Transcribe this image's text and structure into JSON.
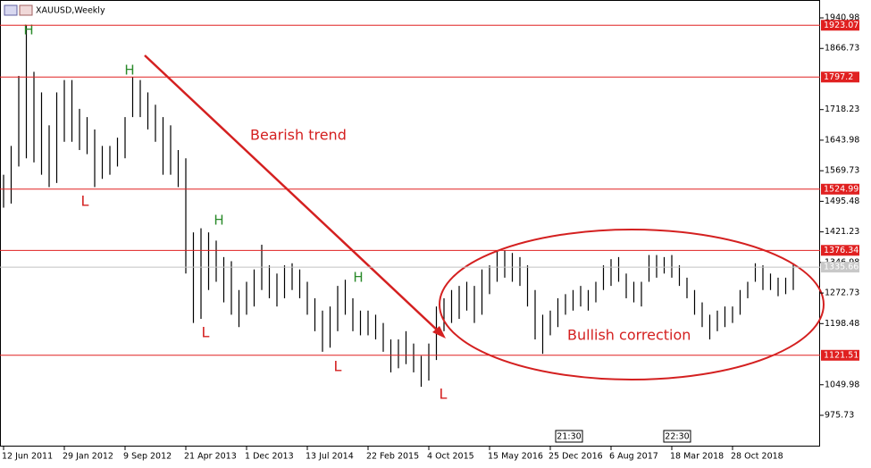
{
  "chart_data": {
    "type": "range-bar",
    "title": "XAUUSD,Weekly",
    "color": "#000000",
    "level_color": "#e02020",
    "ylim": [
      899.8,
      1984.4
    ],
    "yticks": [
      975.73,
      1049.98,
      1198.48,
      1272.73,
      1346.98,
      1421.23,
      1495.48,
      1569.73,
      1643.98,
      1718.23,
      1866.73,
      1940.98
    ],
    "levels": [
      1923.07,
      1797.2,
      1524.99,
      1376.34,
      1121.51
    ],
    "current_price": 1335.66,
    "annotations": {
      "high_marks": [
        "H",
        "H",
        "H",
        "H"
      ],
      "low_marks": [
        "L",
        "L",
        "L",
        "L"
      ],
      "trend": "Bearish trend",
      "correction": "Bullish correction"
    },
    "time_markers": [
      "21:30",
      "22:30"
    ],
    "categories": [
      "12 Jun 2011",
      null,
      null,
      null,
      null,
      null,
      null,
      null,
      "29 Jan 2012",
      null,
      null,
      null,
      null,
      null,
      null,
      null,
      "9 Sep 2012",
      null,
      null,
      null,
      null,
      null,
      null,
      null,
      "21 Apr 2013",
      null,
      null,
      null,
      null,
      null,
      null,
      null,
      "1 Dec 2013",
      null,
      null,
      null,
      null,
      null,
      null,
      null,
      "13 Jul 2014",
      null,
      null,
      null,
      null,
      null,
      null,
      null,
      "22 Feb 2015",
      null,
      null,
      null,
      null,
      null,
      null,
      null,
      "4 Oct 2015",
      null,
      null,
      null,
      null,
      null,
      null,
      null,
      "15 May 2016",
      null,
      null,
      null,
      null,
      null,
      null,
      null,
      "25 Dec 2016",
      null,
      null,
      null,
      null,
      null,
      null,
      null,
      "6 Aug 2017",
      null,
      null,
      null,
      null,
      null,
      null,
      null,
      "18 Mar 2018",
      null,
      null,
      null,
      null,
      null,
      null,
      null,
      "28 Oct 2018",
      null,
      null,
      null,
      null,
      null,
      null,
      null,
      null
    ],
    "high": [
      1560,
      1630,
      1800,
      1923,
      1810,
      1760,
      1680,
      1760,
      1790,
      1790,
      1720,
      1700,
      1670,
      1630,
      1630,
      1650,
      1700,
      1797,
      1790,
      1760,
      1730,
      1700,
      1680,
      1620,
      1600,
      1420,
      1430,
      1420,
      1400,
      1360,
      1350,
      1280,
      1300,
      1330,
      1390,
      1340,
      1320,
      1340,
      1345,
      1330,
      1300,
      1260,
      1230,
      1240,
      1290,
      1305,
      1260,
      1230,
      1230,
      1220,
      1200,
      1160,
      1160,
      1180,
      1150,
      1120,
      1150,
      1240,
      1260,
      1280,
      1290,
      1300,
      1290,
      1330,
      1340,
      1375,
      1376,
      1370,
      1360,
      1340,
      1280,
      1220,
      1230,
      1260,
      1270,
      1280,
      1290,
      1280,
      1300,
      1340,
      1355,
      1360,
      1320,
      1300,
      1300,
      1365,
      1365,
      1360,
      1365,
      1340,
      1310,
      1280,
      1250,
      1220,
      1230,
      1240,
      1240,
      1280,
      1300,
      1345,
      1340,
      1320,
      1310,
      1310,
      1345
    ],
    "low": [
      1480,
      1490,
      1580,
      1600,
      1590,
      1560,
      1530,
      1540,
      1640,
      1640,
      1620,
      1610,
      1530,
      1550,
      1560,
      1580,
      1600,
      1700,
      1700,
      1670,
      1640,
      1560,
      1560,
      1530,
      1320,
      1200,
      1210,
      1280,
      1300,
      1250,
      1220,
      1190,
      1220,
      1240,
      1280,
      1260,
      1240,
      1260,
      1280,
      1260,
      1220,
      1180,
      1130,
      1140,
      1180,
      1220,
      1180,
      1170,
      1170,
      1160,
      1130,
      1080,
      1090,
      1100,
      1080,
      1045,
      1060,
      1110,
      1180,
      1200,
      1210,
      1230,
      1200,
      1220,
      1270,
      1300,
      1310,
      1300,
      1290,
      1240,
      1160,
      1125,
      1170,
      1190,
      1220,
      1230,
      1240,
      1230,
      1250,
      1280,
      1290,
      1300,
      1260,
      1250,
      1240,
      1300,
      1310,
      1320,
      1310,
      1290,
      1260,
      1220,
      1190,
      1160,
      1180,
      1190,
      1200,
      1220,
      1260,
      1300,
      1280,
      1280,
      1265,
      1270,
      1280
    ]
  }
}
